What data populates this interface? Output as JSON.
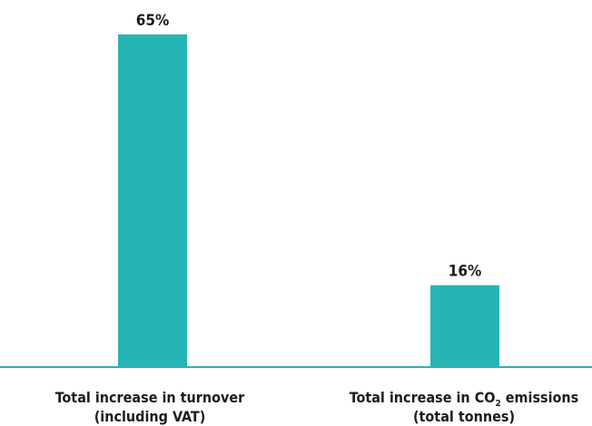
{
  "chart_data": {
    "type": "bar",
    "categories": [
      {
        "line1": "Total increase in turnover",
        "line2": "(including VAT)"
      },
      {
        "line1_pre": "Total increase in CO",
        "line1_sub": "2",
        "line1_post": " emissions",
        "line2": "(total tonnes)"
      }
    ],
    "values": [
      65,
      16
    ],
    "value_labels": [
      "65%",
      "16%"
    ],
    "ylim": [
      0,
      65
    ],
    "grid": false,
    "legend": "none",
    "colors": {
      "bar": "#26b5b5",
      "axis": "#26b5b5",
      "text": "#1d1d1b"
    }
  }
}
